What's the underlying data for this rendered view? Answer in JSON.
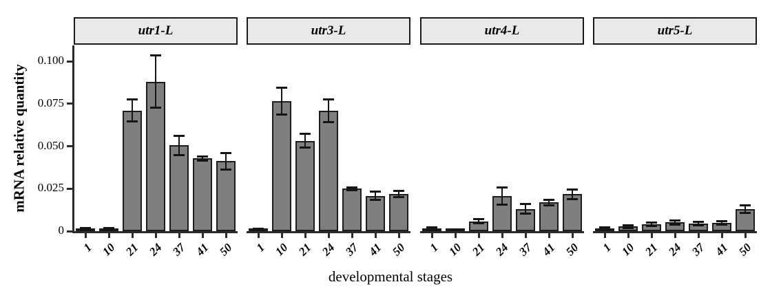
{
  "chart_data": {
    "type": "bar",
    "title": "",
    "xlabel": "developmental stages",
    "ylabel": "mRNA relative quantity",
    "categories": [
      "1",
      "10",
      "21",
      "24",
      "37",
      "41",
      "50"
    ],
    "ytick_values": [
      0,
      0.025,
      0.05,
      0.075,
      0.1
    ],
    "ytick_labels": [
      "0",
      "0.025",
      "0.050",
      "0.075",
      "0.100"
    ],
    "ylim": [
      0,
      0.105
    ],
    "grid": false,
    "legend": "none",
    "error_bars": true,
    "facets": [
      {
        "label": "utr1-L",
        "values": [
          0.001,
          0.001,
          0.071,
          0.088,
          0.0505,
          0.0428,
          0.0412
        ],
        "errors": [
          0.0008,
          0.0008,
          0.0065,
          0.0155,
          0.0057,
          0.0013,
          0.0048
        ]
      },
      {
        "label": "utr3-L",
        "values": [
          0.001,
          0.0765,
          0.0532,
          0.0708,
          0.025,
          0.0208,
          0.0218
        ],
        "errors": [
          0.0005,
          0.008,
          0.0039,
          0.0066,
          0.0008,
          0.0024,
          0.0018
        ]
      },
      {
        "label": "utr4-L",
        "values": [
          0.0015,
          0.0005,
          0.0057,
          0.0206,
          0.013,
          0.0169,
          0.0217
        ],
        "errors": [
          0.0009,
          0.0002,
          0.0012,
          0.005,
          0.0028,
          0.0016,
          0.003
        ]
      },
      {
        "label": "utr5-L",
        "values": [
          0.0015,
          0.0028,
          0.004,
          0.0052,
          0.0044,
          0.0048,
          0.013
        ],
        "errors": [
          0.0008,
          0.0008,
          0.0009,
          0.0012,
          0.0009,
          0.0009,
          0.0021
        ]
      }
    ],
    "colors": {
      "bar_fill": "#7f7f7f",
      "bar_stroke": "#1c1c1c",
      "error_bar": "#151515",
      "strip_bg": "#e9e9e9",
      "strip_border": "#1a1a1a",
      "axis": "#2b2b2b",
      "text": "#000000"
    }
  }
}
